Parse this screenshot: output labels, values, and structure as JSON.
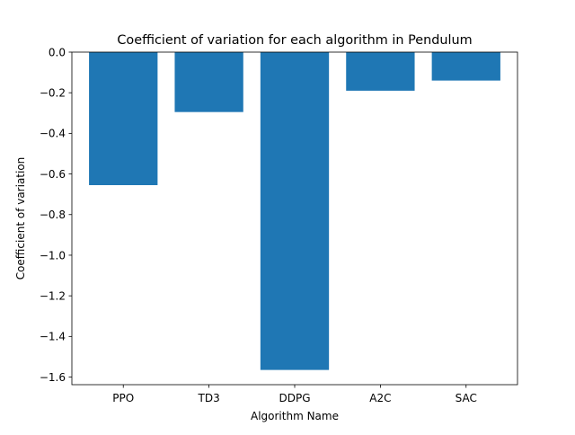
{
  "chart_data": {
    "type": "bar",
    "title": "Coefficient of variation for each algorithm in Pendulum",
    "xlabel": "Algorithm Name",
    "ylabel": "Coefficient of variation",
    "categories": [
      "PPO",
      "TD3",
      "DDPG",
      "A2C",
      "SAC"
    ],
    "values": [
      -0.655,
      -0.295,
      -1.565,
      -0.19,
      -0.14
    ],
    "ylim": [
      -1.6375,
      0.0
    ],
    "yticks": [
      0.0,
      -0.2,
      -0.4,
      -0.6,
      -0.8,
      -1.0,
      -1.2,
      -1.4,
      -1.6
    ],
    "ytick_labels": [
      "0.0",
      "−0.2",
      "−0.4",
      "−0.6",
      "−0.8",
      "−1.0",
      "−1.2",
      "−1.4",
      "−1.6"
    ],
    "bar_color": "#1f77b4",
    "grid": false,
    "legend": "none"
  }
}
